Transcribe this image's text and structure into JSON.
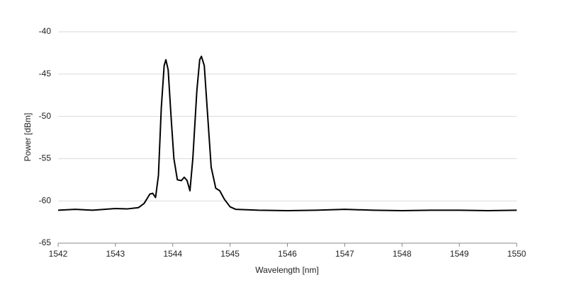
{
  "chart_data": {
    "type": "line",
    "x_label": "Wavelength [nm]",
    "y_label": "Power [dBm]",
    "xlim": [
      1542,
      1550
    ],
    "xticks": [
      1542,
      1543,
      1544,
      1545,
      1546,
      1547,
      1548,
      1549,
      1550
    ],
    "ylim": [
      -65,
      -40
    ],
    "yticks": [
      -40,
      -45,
      -50,
      -55,
      -60,
      -65
    ],
    "grid": true,
    "series": [
      {
        "color": "#000000",
        "x": [
          1542,
          1542.3,
          1542.6,
          1543,
          1543.2,
          1543.4,
          1543.5,
          1543.6,
          1543.65,
          1543.7,
          1543.75,
          1543.8,
          1543.85,
          1543.88,
          1543.92,
          1543.97,
          1544.02,
          1544.08,
          1544.15,
          1544.2,
          1544.25,
          1544.3,
          1544.35,
          1544.42,
          1544.47,
          1544.5,
          1544.55,
          1544.6,
          1544.67,
          1544.75,
          1544.82,
          1544.9,
          1545,
          1545.1,
          1545.5,
          1546,
          1546.5,
          1547,
          1547.5,
          1548,
          1548.5,
          1549,
          1549.5,
          1550
        ],
        "values": [
          -61.1,
          -61.0,
          -61.1,
          -60.9,
          -60.95,
          -60.8,
          -60.3,
          -59.2,
          -59.1,
          -59.6,
          -57,
          -49,
          -44,
          -43.3,
          -44.5,
          -50,
          -55,
          -57.5,
          -57.6,
          -57.2,
          -57.6,
          -58.8,
          -55,
          -47,
          -43.3,
          -42.9,
          -44,
          -49,
          -56,
          -58.5,
          -58.8,
          -59.8,
          -60.7,
          -61.0,
          -61.1,
          -61.15,
          -61.1,
          -61.0,
          -61.1,
          -61.15,
          -61.1,
          -61.1,
          -61.15,
          -61.1
        ]
      }
    ]
  }
}
